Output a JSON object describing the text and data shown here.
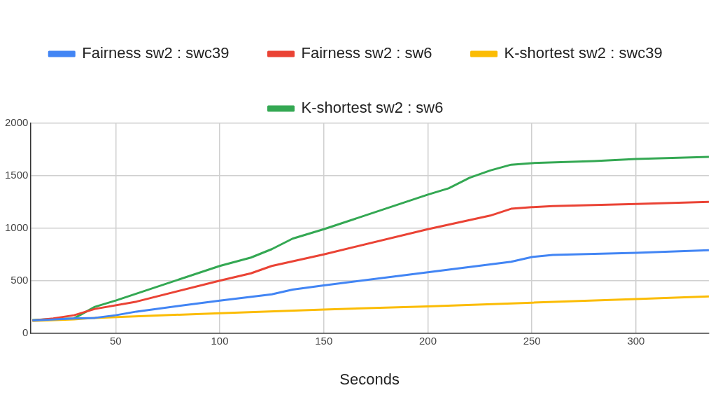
{
  "chart_data": {
    "type": "line",
    "xlabel": "Seconds",
    "legend": "top",
    "grid": true,
    "marker": "none",
    "line_style": "solid",
    "xlim": [
      9,
      335
    ],
    "xticks": [
      50,
      100,
      150,
      200,
      250,
      300
    ],
    "ylim": [
      0,
      2000
    ],
    "yticks": [
      0,
      500,
      1000,
      1500,
      2000
    ],
    "series": [
      {
        "name": "Fairness sw2 : swc39",
        "color": "#4285f4",
        "x": [
          10,
          30,
          40,
          50,
          60,
          100,
          125,
          135,
          150,
          200,
          240,
          250,
          260,
          300,
          335
        ],
        "values": [
          120,
          140,
          145,
          170,
          205,
          310,
          370,
          415,
          455,
          580,
          680,
          725,
          745,
          765,
          790
        ]
      },
      {
        "name": "Fairness sw2 : sw6",
        "color": "#ea4335",
        "x": [
          10,
          20,
          30,
          40,
          60,
          100,
          115,
          125,
          150,
          200,
          230,
          240,
          250,
          260,
          300,
          335
        ],
        "values": [
          120,
          140,
          170,
          230,
          300,
          500,
          570,
          640,
          750,
          990,
          1120,
          1185,
          1200,
          1210,
          1230,
          1250
        ]
      },
      {
        "name": "K-shortest sw2 : swc39",
        "color": "#fbbc04",
        "x": [
          10,
          30,
          40,
          100,
          150,
          200,
          250,
          300,
          335
        ],
        "values": [
          115,
          130,
          145,
          190,
          225,
          255,
          290,
          325,
          350
        ]
      },
      {
        "name": "K-shortest sw2 : sw6",
        "color": "#34a853",
        "x": [
          10,
          20,
          30,
          40,
          50,
          100,
          115,
          125,
          135,
          150,
          200,
          210,
          220,
          230,
          240,
          250,
          280,
          300,
          335
        ],
        "values": [
          125,
          135,
          140,
          250,
          310,
          640,
          720,
          800,
          900,
          990,
          1320,
          1380,
          1480,
          1550,
          1605,
          1620,
          1640,
          1660,
          1680
        ]
      }
    ]
  }
}
